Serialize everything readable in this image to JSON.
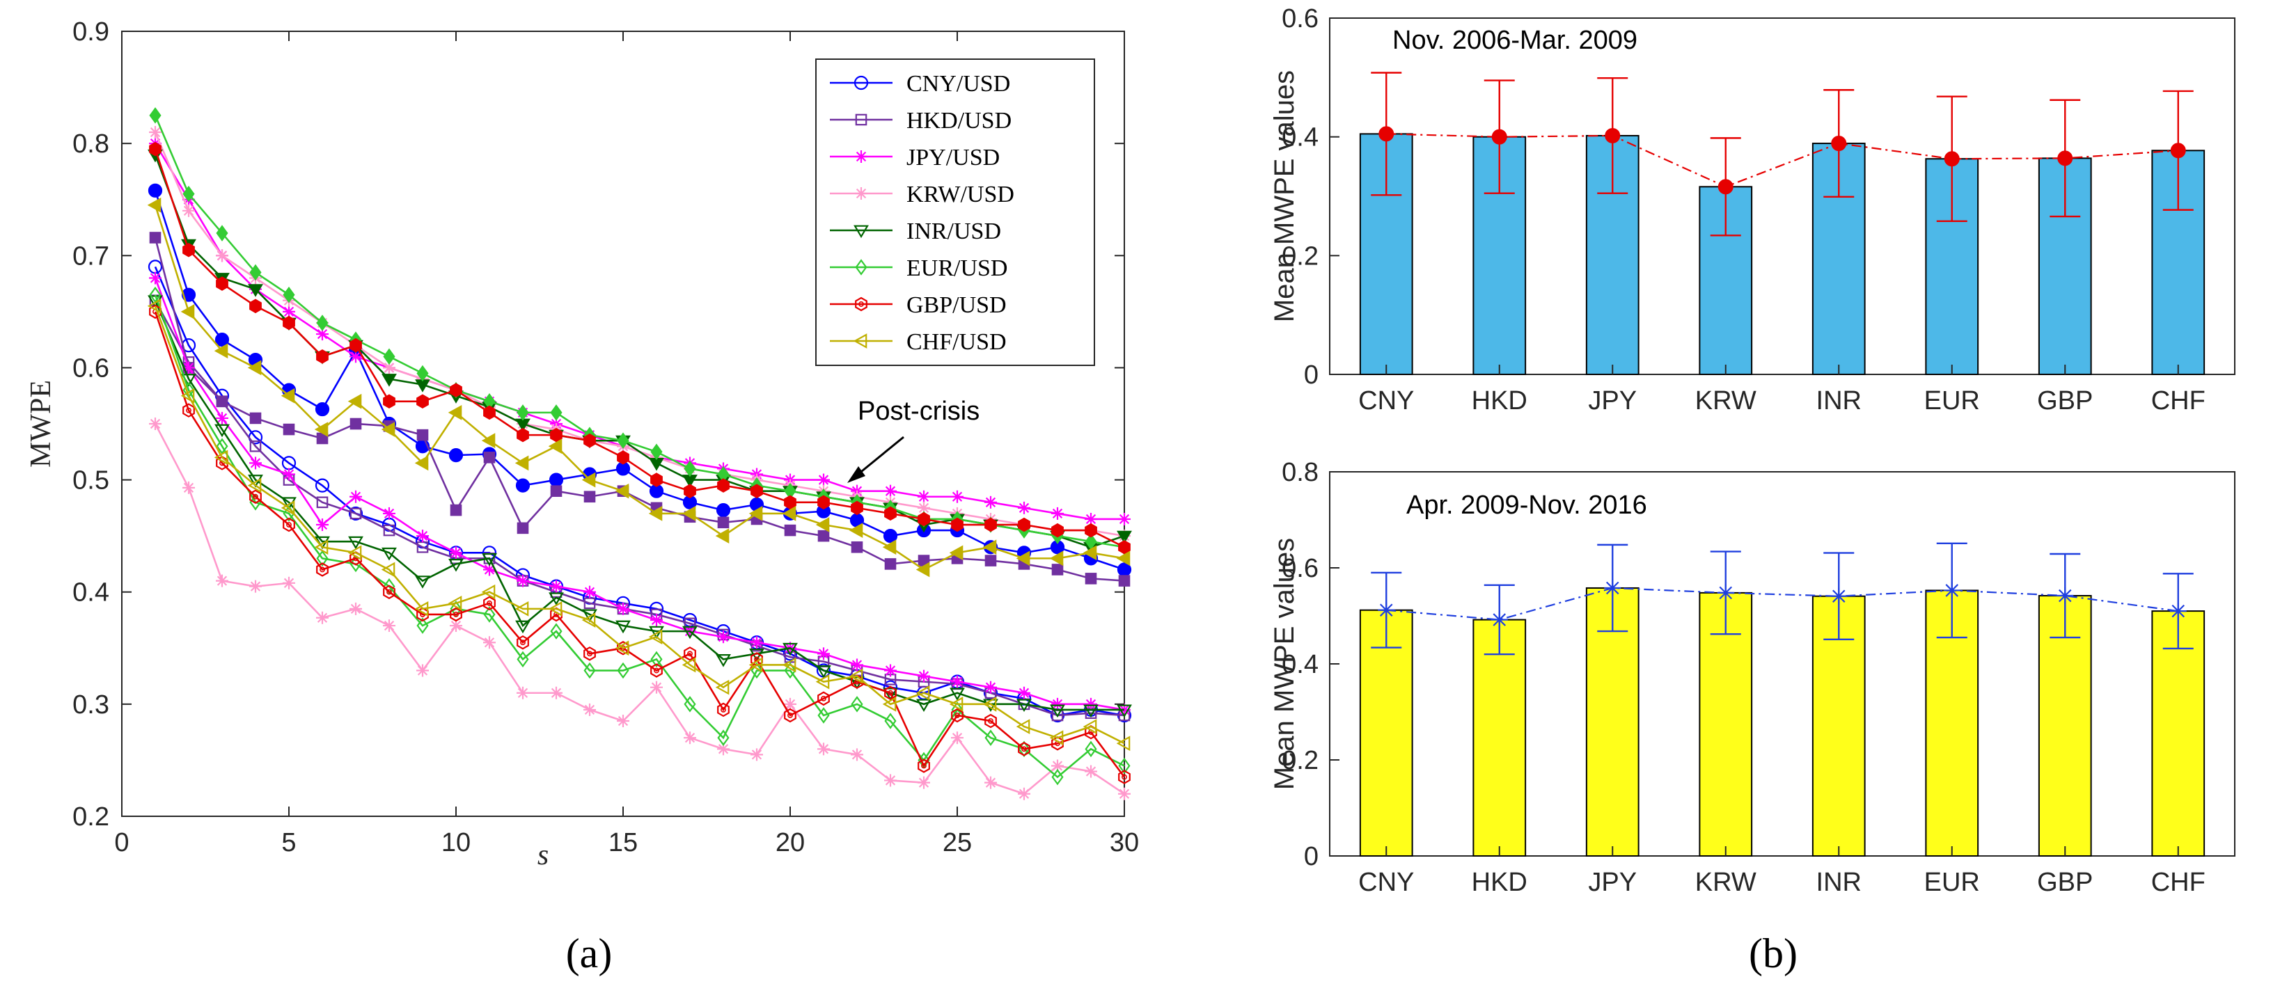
{
  "chart_data": [
    {
      "id": "a",
      "type": "line",
      "subfigure_label": "(a)",
      "xlabel": "s",
      "ylabel": "MWPE",
      "xlim": [
        0,
        30
      ],
      "ylim": [
        0.2,
        0.9
      ],
      "xticks": [
        0,
        5,
        10,
        15,
        20,
        25,
        30
      ],
      "yticks": [
        0.2,
        0.3,
        0.4,
        0.5,
        0.6,
        0.7,
        0.8,
        0.9
      ],
      "annotation": "Post-crisis",
      "legend_position": "top-right",
      "x": [
        1,
        2,
        3,
        4,
        5,
        6,
        7,
        8,
        9,
        10,
        11,
        12,
        13,
        14,
        15,
        16,
        17,
        18,
        19,
        20,
        21,
        22,
        23,
        24,
        25,
        26,
        27,
        28,
        29,
        30
      ],
      "series": [
        {
          "name": "CNY/USD",
          "color": "#0000ff",
          "marker": "o",
          "pre": [
            0.69,
            0.62,
            0.575,
            0.538,
            0.515,
            0.495,
            0.47,
            0.46,
            0.445,
            0.435,
            0.435,
            0.415,
            0.405,
            0.395,
            0.39,
            0.385,
            0.375,
            0.365,
            0.355,
            0.345,
            0.33,
            0.325,
            0.315,
            0.31,
            0.32,
            0.31,
            0.305,
            0.29,
            0.295,
            0.29
          ],
          "post": [
            0.758,
            0.665,
            0.625,
            0.607,
            0.58,
            0.563,
            0.615,
            0.55,
            0.53,
            0.522,
            0.523,
            0.495,
            0.5,
            0.505,
            0.51,
            0.49,
            0.48,
            0.473,
            0.478,
            0.47,
            0.472,
            0.464,
            0.45,
            0.455,
            0.455,
            0.44,
            0.435,
            0.44,
            0.43,
            0.42
          ]
        },
        {
          "name": "HKD/USD",
          "color": "#7030a0",
          "marker": "s",
          "pre": [
            0.66,
            0.605,
            0.57,
            0.53,
            0.5,
            0.48,
            0.47,
            0.455,
            0.44,
            0.43,
            0.43,
            0.41,
            0.4,
            0.39,
            0.385,
            0.38,
            0.372,
            0.362,
            0.352,
            0.342,
            0.338,
            0.33,
            0.322,
            0.32,
            0.318,
            0.31,
            0.3,
            0.29,
            0.292,
            0.29
          ],
          "post": [
            0.716,
            0.6,
            0.57,
            0.555,
            0.545,
            0.537,
            0.55,
            0.548,
            0.54,
            0.473,
            0.52,
            0.457,
            0.49,
            0.485,
            0.49,
            0.475,
            0.467,
            0.462,
            0.465,
            0.455,
            0.45,
            0.44,
            0.425,
            0.428,
            0.43,
            0.428,
            0.425,
            0.42,
            0.412,
            0.41
          ]
        },
        {
          "name": "JPY/USD",
          "color": "#ff00ff",
          "marker": "*",
          "pre": [
            0.68,
            0.6,
            0.555,
            0.515,
            0.505,
            0.46,
            0.485,
            0.47,
            0.45,
            0.435,
            0.42,
            0.41,
            0.405,
            0.4,
            0.385,
            0.375,
            0.365,
            0.36,
            0.355,
            0.35,
            0.345,
            0.335,
            0.33,
            0.325,
            0.32,
            0.315,
            0.31,
            0.3,
            0.3,
            0.295
          ],
          "post": [
            0.8,
            0.75,
            0.7,
            0.67,
            0.65,
            0.63,
            0.61,
            0.6,
            0.59,
            0.58,
            0.57,
            0.56,
            0.55,
            0.54,
            0.53,
            0.52,
            0.515,
            0.51,
            0.505,
            0.5,
            0.5,
            0.49,
            0.49,
            0.485,
            0.485,
            0.48,
            0.475,
            0.47,
            0.465,
            0.465
          ]
        },
        {
          "name": "KRW/USD",
          "color": "#ff99cc",
          "marker": "*",
          "pre": [
            0.55,
            0.493,
            0.41,
            0.405,
            0.408,
            0.377,
            0.385,
            0.37,
            0.33,
            0.37,
            0.355,
            0.31,
            0.31,
            0.295,
            0.285,
            0.315,
            0.27,
            0.26,
            0.255,
            0.3,
            0.26,
            0.255,
            0.232,
            0.23,
            0.27,
            0.23,
            0.22,
            0.245,
            0.24,
            0.22
          ],
          "post": [
            0.81,
            0.74,
            0.7,
            0.68,
            0.66,
            0.64,
            0.62,
            0.6,
            0.59,
            0.58,
            0.565,
            0.55,
            0.545,
            0.535,
            0.53,
            0.52,
            0.51,
            0.505,
            0.5,
            0.495,
            0.49,
            0.485,
            0.48,
            0.475,
            0.47,
            0.465,
            0.46,
            0.455,
            0.455,
            0.45
          ]
        },
        {
          "name": "INR/USD",
          "color": "#006400",
          "marker": "v",
          "pre": [
            0.66,
            0.59,
            0.545,
            0.5,
            0.48,
            0.445,
            0.445,
            0.435,
            0.41,
            0.425,
            0.43,
            0.37,
            0.395,
            0.38,
            0.37,
            0.365,
            0.365,
            0.34,
            0.345,
            0.35,
            0.33,
            0.32,
            0.31,
            0.3,
            0.31,
            0.3,
            0.3,
            0.295,
            0.295,
            0.295
          ],
          "post": [
            0.79,
            0.71,
            0.68,
            0.67,
            0.64,
            0.61,
            0.62,
            0.59,
            0.585,
            0.575,
            0.565,
            0.55,
            0.54,
            0.535,
            0.535,
            0.515,
            0.5,
            0.5,
            0.49,
            0.49,
            0.485,
            0.48,
            0.475,
            0.46,
            0.465,
            0.46,
            0.455,
            0.45,
            0.44,
            0.45
          ]
        },
        {
          "name": "EUR/USD",
          "color": "#33cc33",
          "marker": "d",
          "pre": [
            0.665,
            0.58,
            0.53,
            0.48,
            0.47,
            0.43,
            0.425,
            0.405,
            0.37,
            0.385,
            0.38,
            0.34,
            0.365,
            0.33,
            0.33,
            0.34,
            0.3,
            0.27,
            0.33,
            0.33,
            0.29,
            0.3,
            0.285,
            0.25,
            0.295,
            0.27,
            0.26,
            0.235,
            0.26,
            0.245
          ],
          "post": [
            0.825,
            0.755,
            0.72,
            0.685,
            0.665,
            0.64,
            0.625,
            0.61,
            0.595,
            0.58,
            0.57,
            0.56,
            0.56,
            0.54,
            0.535,
            0.525,
            0.51,
            0.505,
            0.495,
            0.49,
            0.485,
            0.48,
            0.475,
            0.465,
            0.465,
            0.46,
            0.455,
            0.45,
            0.445,
            0.44
          ]
        },
        {
          "name": "GBP/USD",
          "color": "#e60000",
          "marker": "h",
          "pre": [
            0.65,
            0.562,
            0.515,
            0.485,
            0.46,
            0.42,
            0.43,
            0.4,
            0.38,
            0.38,
            0.39,
            0.355,
            0.38,
            0.345,
            0.35,
            0.33,
            0.345,
            0.295,
            0.34,
            0.29,
            0.305,
            0.32,
            0.31,
            0.245,
            0.29,
            0.285,
            0.26,
            0.265,
            0.275,
            0.235
          ],
          "post": [
            0.795,
            0.705,
            0.675,
            0.655,
            0.64,
            0.61,
            0.62,
            0.57,
            0.57,
            0.58,
            0.56,
            0.54,
            0.54,
            0.535,
            0.52,
            0.5,
            0.49,
            0.495,
            0.49,
            0.48,
            0.48,
            0.475,
            0.47,
            0.465,
            0.46,
            0.46,
            0.46,
            0.455,
            0.455,
            0.44
          ]
        },
        {
          "name": "CHF/USD",
          "color": "#c0b000",
          "marker": "<",
          "pre": [
            0.655,
            0.575,
            0.52,
            0.495,
            0.475,
            0.44,
            0.435,
            0.42,
            0.385,
            0.39,
            0.4,
            0.385,
            0.385,
            0.375,
            0.35,
            0.36,
            0.335,
            0.315,
            0.335,
            0.335,
            0.32,
            0.325,
            0.3,
            0.31,
            0.3,
            0.3,
            0.28,
            0.27,
            0.28,
            0.265
          ],
          "post": [
            0.745,
            0.65,
            0.615,
            0.6,
            0.575,
            0.545,
            0.57,
            0.545,
            0.515,
            0.56,
            0.535,
            0.515,
            0.53,
            0.5,
            0.49,
            0.47,
            0.47,
            0.45,
            0.47,
            0.47,
            0.46,
            0.455,
            0.44,
            0.42,
            0.435,
            0.44,
            0.43,
            0.43,
            0.435,
            0.43
          ]
        }
      ]
    },
    {
      "id": "b_top",
      "type": "bar",
      "subfigure_label": "(b)",
      "title": "Nov. 2006-Mar. 2009",
      "ylabel": "Mean MWPE values",
      "categories": [
        "CNY",
        "HKD",
        "JPY",
        "KRW",
        "INR",
        "EUR",
        "GBP",
        "CHF"
      ],
      "values": [
        0.405,
        0.4,
        0.402,
        0.316,
        0.389,
        0.363,
        0.364,
        0.377
      ],
      "errors": [
        0.103,
        0.095,
        0.097,
        0.082,
        0.09,
        0.105,
        0.098,
        0.1
      ],
      "ylim": [
        0,
        0.6
      ],
      "yticks": [
        0,
        0.2,
        0.4,
        0.6
      ],
      "bar_color": "#4db8e8",
      "error_color": "#e60000",
      "marker": "o"
    },
    {
      "id": "b_bottom",
      "type": "bar",
      "title": "Apr. 2009-Nov. 2016",
      "ylabel": "Mean MWPE values",
      "categories": [
        "CNY",
        "HKD",
        "JPY",
        "KRW",
        "INR",
        "EUR",
        "GBP",
        "CHF"
      ],
      "values": [
        0.512,
        0.492,
        0.558,
        0.548,
        0.541,
        0.553,
        0.542,
        0.51
      ],
      "errors": [
        0.078,
        0.072,
        0.09,
        0.086,
        0.09,
        0.098,
        0.087,
        0.078
      ],
      "ylim": [
        0,
        0.8
      ],
      "yticks": [
        0,
        0.2,
        0.4,
        0.6,
        0.8
      ],
      "bar_color": "#ffff1a",
      "error_color": "#1f3fdf",
      "marker": "*"
    }
  ]
}
